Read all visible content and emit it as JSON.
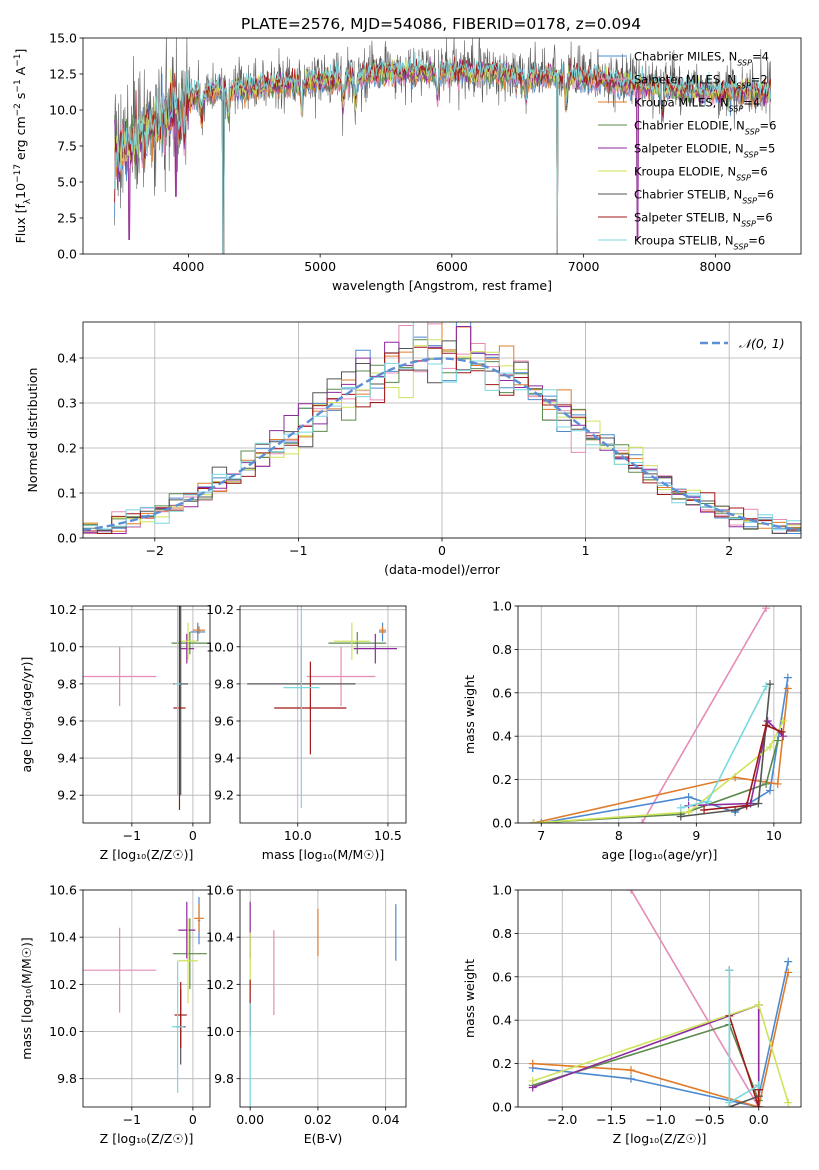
{
  "figure_title": "PLATE=2576, MJD=54086, FIBERID=0178, z=0.094",
  "legend_spectrum": [
    "Chabrier MILES, N",
    "Salpeter MILES, N",
    "Kroupa MILES, N",
    "Chabrier ELODIE, N",
    "Salpeter ELODIE, N",
    "Kroupa ELODIE, N",
    "Chabrier STELIB, N",
    "Salpeter STELIB, N",
    "Kroupa STELIB, N"
  ],
  "legend_nssp": [
    "4",
    "2",
    "4",
    "6",
    "5",
    "6",
    "6",
    "6",
    "6"
  ],
  "legend_sub": "SSP",
  "legend_normal": "𝒩(0, 1)",
  "colors": [
    "#4c8ad0",
    "#e68bb6",
    "#e07b28",
    "#5c8a4c",
    "#8e2a9e",
    "#cfe35a",
    "#545454",
    "#a01818",
    "#7ad8df"
  ],
  "chart_data": [
    {
      "name": "spectrum",
      "type": "line",
      "xlabel": "wavelength [Angstrom, rest frame]",
      "ylabel_parts": [
        "Flux [f",
        "λ",
        "10",
        "−17",
        " erg cm",
        "−2",
        " s",
        "−1",
        " A",
        "−1",
        "]"
      ],
      "xlim": [
        3200,
        8650
      ],
      "ylim": [
        0,
        15
      ],
      "xticks": [
        4000,
        5000,
        6000,
        7000,
        8000
      ],
      "yticks": [
        0.0,
        2.5,
        5.0,
        7.5,
        10.0,
        12.5,
        15.0
      ],
      "ytick_labels": [
        "0.0",
        "2.5",
        "5.0",
        "7.5",
        "10.0",
        "12.5",
        "15.0"
      ],
      "data_range": [
        3440,
        8420
      ],
      "continuum": [
        [
          3440,
          6.5
        ],
        [
          3600,
          8.0
        ],
        [
          3800,
          9.5
        ],
        [
          4000,
          10.8
        ],
        [
          4200,
          11.3
        ],
        [
          4500,
          11.6
        ],
        [
          5000,
          12.0
        ],
        [
          5500,
          12.6
        ],
        [
          6000,
          12.7
        ],
        [
          6500,
          12.4
        ],
        [
          7000,
          12.2
        ],
        [
          7500,
          11.6
        ],
        [
          8000,
          11.2
        ],
        [
          8420,
          11.3
        ]
      ],
      "absorption_lines": [
        3934,
        3969,
        4102,
        4304,
        4861,
        5175,
        5270,
        5890,
        6563,
        6867,
        7600
      ],
      "dropouts": [
        [
          3550,
          2
        ],
        [
          3905,
          5
        ],
        [
          4265,
          0
        ],
        [
          6800,
          0
        ],
        [
          7410,
          2
        ]
      ]
    },
    {
      "name": "residuals",
      "type": "step",
      "xlabel": "(data-model)/error",
      "ylabel": "Normed distribution",
      "xlim": [
        -2.5,
        2.5
      ],
      "ylim": [
        0,
        0.48
      ],
      "xticks": [
        -2,
        -1,
        0,
        1,
        2
      ],
      "xtick_labels": [
        "−2",
        "−1",
        "0",
        "1",
        "2"
      ],
      "yticks": [
        0.0,
        0.1,
        0.2,
        0.3,
        0.4
      ],
      "ytick_labels": [
        "0.0",
        "0.1",
        "0.2",
        "0.3",
        "0.4"
      ],
      "bin_width": 0.1,
      "reference": "normal(0,1)"
    },
    {
      "name": "age_vs_Z",
      "type": "errorbar",
      "xlabel": "Z [log₁₀(Z/Z☉)]",
      "ylabel": "age  [log₁₀(age/yr)]",
      "xlim": [
        -1.8,
        0.28
      ],
      "ylim": [
        9.05,
        10.22
      ],
      "xticks": [
        -1,
        0
      ],
      "xtick_labels": [
        "−1",
        "0"
      ],
      "yticks": [
        9.2,
        9.4,
        9.6,
        9.8,
        10.0,
        10.2
      ],
      "points": [
        {
          "x": -1.2,
          "y": 9.84,
          "xerr": 0.6,
          "yerr": 0.16,
          "c": 1
        },
        {
          "x": 0.08,
          "y": 10.08,
          "xerr": 0.12,
          "yerr": 0.05,
          "c": 0
        },
        {
          "x": 0.1,
          "y": 10.09,
          "xerr": 0.1,
          "yerr": 0.02,
          "c": 2
        },
        {
          "x": -0.05,
          "y": 10.02,
          "xerr": 0.3,
          "yerr": 0.06,
          "c": 3
        },
        {
          "x": -0.1,
          "y": 9.99,
          "xerr": 0.12,
          "yerr": 0.08,
          "c": 4
        },
        {
          "x": -0.08,
          "y": 10.03,
          "xerr": 0.15,
          "yerr": 0.1,
          "c": 5
        },
        {
          "x": -0.2,
          "y": 9.8,
          "xerr": 0.12,
          "yerr": 0.6,
          "c": 6
        },
        {
          "x": -0.22,
          "y": 9.67,
          "xerr": 0.1,
          "yerr": 0.55,
          "c": 7
        },
        {
          "x": -0.25,
          "y": 9.8,
          "xerr": 0.05,
          "yerr": 0.6,
          "c": 8
        }
      ]
    },
    {
      "name": "age_vs_mass",
      "type": "errorbar",
      "xlabel": "mass [log₁₀(M/M☉)]",
      "ylabel": "",
      "xlim": [
        9.68,
        10.6
      ],
      "ylim": [
        9.05,
        10.22
      ],
      "xticks": [
        10.0,
        10.5
      ],
      "xtick_labels": [
        "10.0",
        "10.5"
      ],
      "yticks": [
        9.2,
        9.4,
        9.6,
        9.8,
        10.0,
        10.2
      ],
      "points": [
        {
          "x": 10.24,
          "y": 9.84,
          "xerr": 0.19,
          "yerr": 0.16,
          "c": 1
        },
        {
          "x": 10.47,
          "y": 10.08,
          "xerr": 0.02,
          "yerr": 0.05,
          "c": 0
        },
        {
          "x": 10.47,
          "y": 10.09,
          "xerr": 0.02,
          "yerr": 0.02,
          "c": 2
        },
        {
          "x": 10.33,
          "y": 10.02,
          "xerr": 0.16,
          "yerr": 0.06,
          "c": 3
        },
        {
          "x": 10.43,
          "y": 9.99,
          "xerr": 0.12,
          "yerr": 0.08,
          "c": 4
        },
        {
          "x": 10.3,
          "y": 10.03,
          "xerr": 0.1,
          "yerr": 0.1,
          "c": 5
        },
        {
          "x": 10.02,
          "y": 9.8,
          "xerr": 0.3,
          "yerr": 0.2,
          "c": 6
        },
        {
          "x": 10.07,
          "y": 9.67,
          "xerr": 0.2,
          "yerr": 0.25,
          "c": 7
        },
        {
          "x": 10.02,
          "y": 9.78,
          "xerr": 0.1,
          "yerr": 0.65,
          "c": 8
        }
      ]
    },
    {
      "name": "massweight_vs_age",
      "type": "line",
      "xlabel": "age  [log₁₀(age/yr)]",
      "ylabel": "mass weight",
      "xlim": [
        6.7,
        10.35
      ],
      "ylim": [
        0,
        1.0
      ],
      "xticks": [
        7,
        8,
        9,
        10
      ],
      "yticks": [
        0.0,
        0.2,
        0.4,
        0.6,
        0.8,
        1.0
      ],
      "ytick_labels": [
        "0.0",
        "0.2",
        "0.4",
        "0.6",
        "0.8",
        "1.0"
      ],
      "series": [
        {
          "c": 1,
          "x": [
            8.3,
            9.9
          ],
          "y": [
            0.0,
            0.99
          ]
        },
        {
          "c": 0,
          "x": [
            7.0,
            8.9,
            9.5,
            9.95,
            10.18
          ],
          "y": [
            0.0,
            0.12,
            0.05,
            0.15,
            0.67
          ]
        },
        {
          "c": 2,
          "x": [
            6.9,
            9.5,
            10.05,
            10.18
          ],
          "y": [
            0.0,
            0.21,
            0.18,
            0.62
          ]
        },
        {
          "c": 3,
          "x": [
            6.9,
            8.8,
            9.9,
            10.05
          ],
          "y": [
            0.0,
            0.04,
            0.18,
            0.38
          ]
        },
        {
          "c": 4,
          "x": [
            8.9,
            9.7,
            9.92,
            10.12
          ],
          "y": [
            0.08,
            0.09,
            0.47,
            0.4
          ]
        },
        {
          "c": 5,
          "x": [
            6.9,
            8.9,
            9.95,
            10.12
          ],
          "y": [
            0.0,
            0.05,
            0.35,
            0.47
          ]
        },
        {
          "c": 6,
          "x": [
            8.8,
            9.5,
            9.8,
            9.95
          ],
          "y": [
            0.03,
            0.06,
            0.09,
            0.64
          ]
        },
        {
          "c": 7,
          "x": [
            9.1,
            9.65,
            9.9,
            10.1
          ],
          "y": [
            0.06,
            0.08,
            0.45,
            0.42
          ]
        },
        {
          "c": 8,
          "x": [
            8.8,
            9.15,
            9.9
          ],
          "y": [
            0.07,
            0.1,
            0.63
          ]
        }
      ]
    },
    {
      "name": "mass_vs_Z",
      "type": "errorbar",
      "xlabel": "Z [log₁₀(Z/Z☉)]",
      "ylabel": "mass [log₁₀(M/M☉)]",
      "xlim": [
        -1.8,
        0.28
      ],
      "ylim": [
        9.68,
        10.6
      ],
      "xticks": [
        -1,
        0
      ],
      "xtick_labels": [
        "−1",
        "0"
      ],
      "yticks": [
        9.8,
        10.0,
        10.2,
        10.4,
        10.6
      ],
      "points": [
        {
          "x": -1.2,
          "y": 10.26,
          "xerr": 0.6,
          "yerr": 0.18,
          "c": 1
        },
        {
          "x": 0.1,
          "y": 10.47,
          "xerr": 0.02,
          "yerr": 0.1,
          "c": 0
        },
        {
          "x": 0.1,
          "y": 10.48,
          "xerr": 0.08,
          "yerr": 0.06,
          "c": 2
        },
        {
          "x": -0.05,
          "y": 10.33,
          "xerr": 0.28,
          "yerr": 0.15,
          "c": 3
        },
        {
          "x": -0.1,
          "y": 10.43,
          "xerr": 0.14,
          "yerr": 0.12,
          "c": 4
        },
        {
          "x": -0.08,
          "y": 10.3,
          "xerr": 0.16,
          "yerr": 0.18,
          "c": 5
        },
        {
          "x": -0.2,
          "y": 10.02,
          "xerr": 0.08,
          "yerr": 0.16,
          "c": 6
        },
        {
          "x": -0.2,
          "y": 10.07,
          "xerr": 0.1,
          "yerr": 0.14,
          "c": 7
        },
        {
          "x": -0.25,
          "y": 10.02,
          "xerr": 0.1,
          "yerr": 0.28,
          "c": 8
        }
      ]
    },
    {
      "name": "mass_vs_EBV",
      "type": "errorbar",
      "xlabel": "E(B-V)",
      "ylabel": "",
      "xlim": [
        -0.003,
        0.046
      ],
      "ylim": [
        9.68,
        10.6
      ],
      "xticks": [
        0.0,
        0.02,
        0.04
      ],
      "xtick_labels": [
        "0.00",
        "0.02",
        "0.04"
      ],
      "yticks": [
        9.8,
        10.0,
        10.2,
        10.4,
        10.6
      ],
      "points": [
        {
          "x": 0.0,
          "y": 10.43,
          "xerr": 0,
          "yerr": 0.12,
          "c": 4
        },
        {
          "x": 0.0,
          "y": 10.3,
          "xerr": 0,
          "yerr": 0.12,
          "c": 5
        },
        {
          "x": 0.0,
          "y": 10.1,
          "xerr": 0,
          "yerr": 0.12,
          "c": 7
        },
        {
          "x": 0.0,
          "y": 9.9,
          "xerr": 0,
          "yerr": 0.22,
          "c": 8
        },
        {
          "x": 0.007,
          "y": 10.25,
          "xerr": 0,
          "yerr": 0.18,
          "c": 1
        },
        {
          "x": 0.02,
          "y": 10.42,
          "xerr": 0,
          "yerr": 0.1,
          "c": 2
        },
        {
          "x": 0.043,
          "y": 10.42,
          "xerr": 0,
          "yerr": 0.12,
          "c": 0
        }
      ]
    },
    {
      "name": "massweight_vs_Z",
      "type": "line",
      "xlabel": "Z [log₁₀(Z/Z☉)]",
      "ylabel": "mass weight",
      "xlim": [
        -2.45,
        0.43
      ],
      "ylim": [
        0,
        1.0
      ],
      "xticks": [
        -2.0,
        -1.5,
        -1.0,
        -0.5,
        0.0
      ],
      "xtick_labels": [
        "−2.0",
        "−1.5",
        "−1.0",
        "−0.5",
        "0.0"
      ],
      "yticks": [
        0.0,
        0.2,
        0.4,
        0.6,
        0.8,
        1.0
      ],
      "ytick_labels": [
        "0.0",
        "0.2",
        "0.4",
        "0.6",
        "0.8",
        "1.0"
      ],
      "series": [
        {
          "c": 1,
          "x": [
            -1.3,
            0.0
          ],
          "y": [
            1.0,
            0.0
          ]
        },
        {
          "c": 0,
          "x": [
            -2.3,
            -1.3,
            0.0,
            0.0,
            0.3
          ],
          "y": [
            0.18,
            0.13,
            0.0,
            0.05,
            0.67
          ]
        },
        {
          "c": 2,
          "x": [
            -2.3,
            -1.3,
            0.0,
            0.3
          ],
          "y": [
            0.2,
            0.17,
            0.0,
            0.62
          ]
        },
        {
          "c": 3,
          "x": [
            -2.3,
            -0.3,
            0.0
          ],
          "y": [
            0.1,
            0.38,
            0.03
          ]
        },
        {
          "c": 4,
          "x": [
            -2.3,
            0.0,
            0.0
          ],
          "y": [
            0.09,
            0.47,
            0.08
          ]
        },
        {
          "c": 5,
          "x": [
            -2.3,
            0.0,
            0.3
          ],
          "y": [
            0.12,
            0.47,
            0.02
          ]
        },
        {
          "c": 6,
          "x": [
            -0.3,
            -0.3,
            0.0,
            0.0
          ],
          "y": [
            0.63,
            0.0,
            0.05,
            0.1
          ]
        },
        {
          "c": 7,
          "x": [
            -0.3,
            0.0,
            0.0
          ],
          "y": [
            0.42,
            0.0,
            0.08
          ]
        },
        {
          "c": 8,
          "x": [
            -0.3,
            -0.3,
            0.0
          ],
          "y": [
            0.63,
            0.02,
            0.1
          ]
        }
      ]
    }
  ]
}
